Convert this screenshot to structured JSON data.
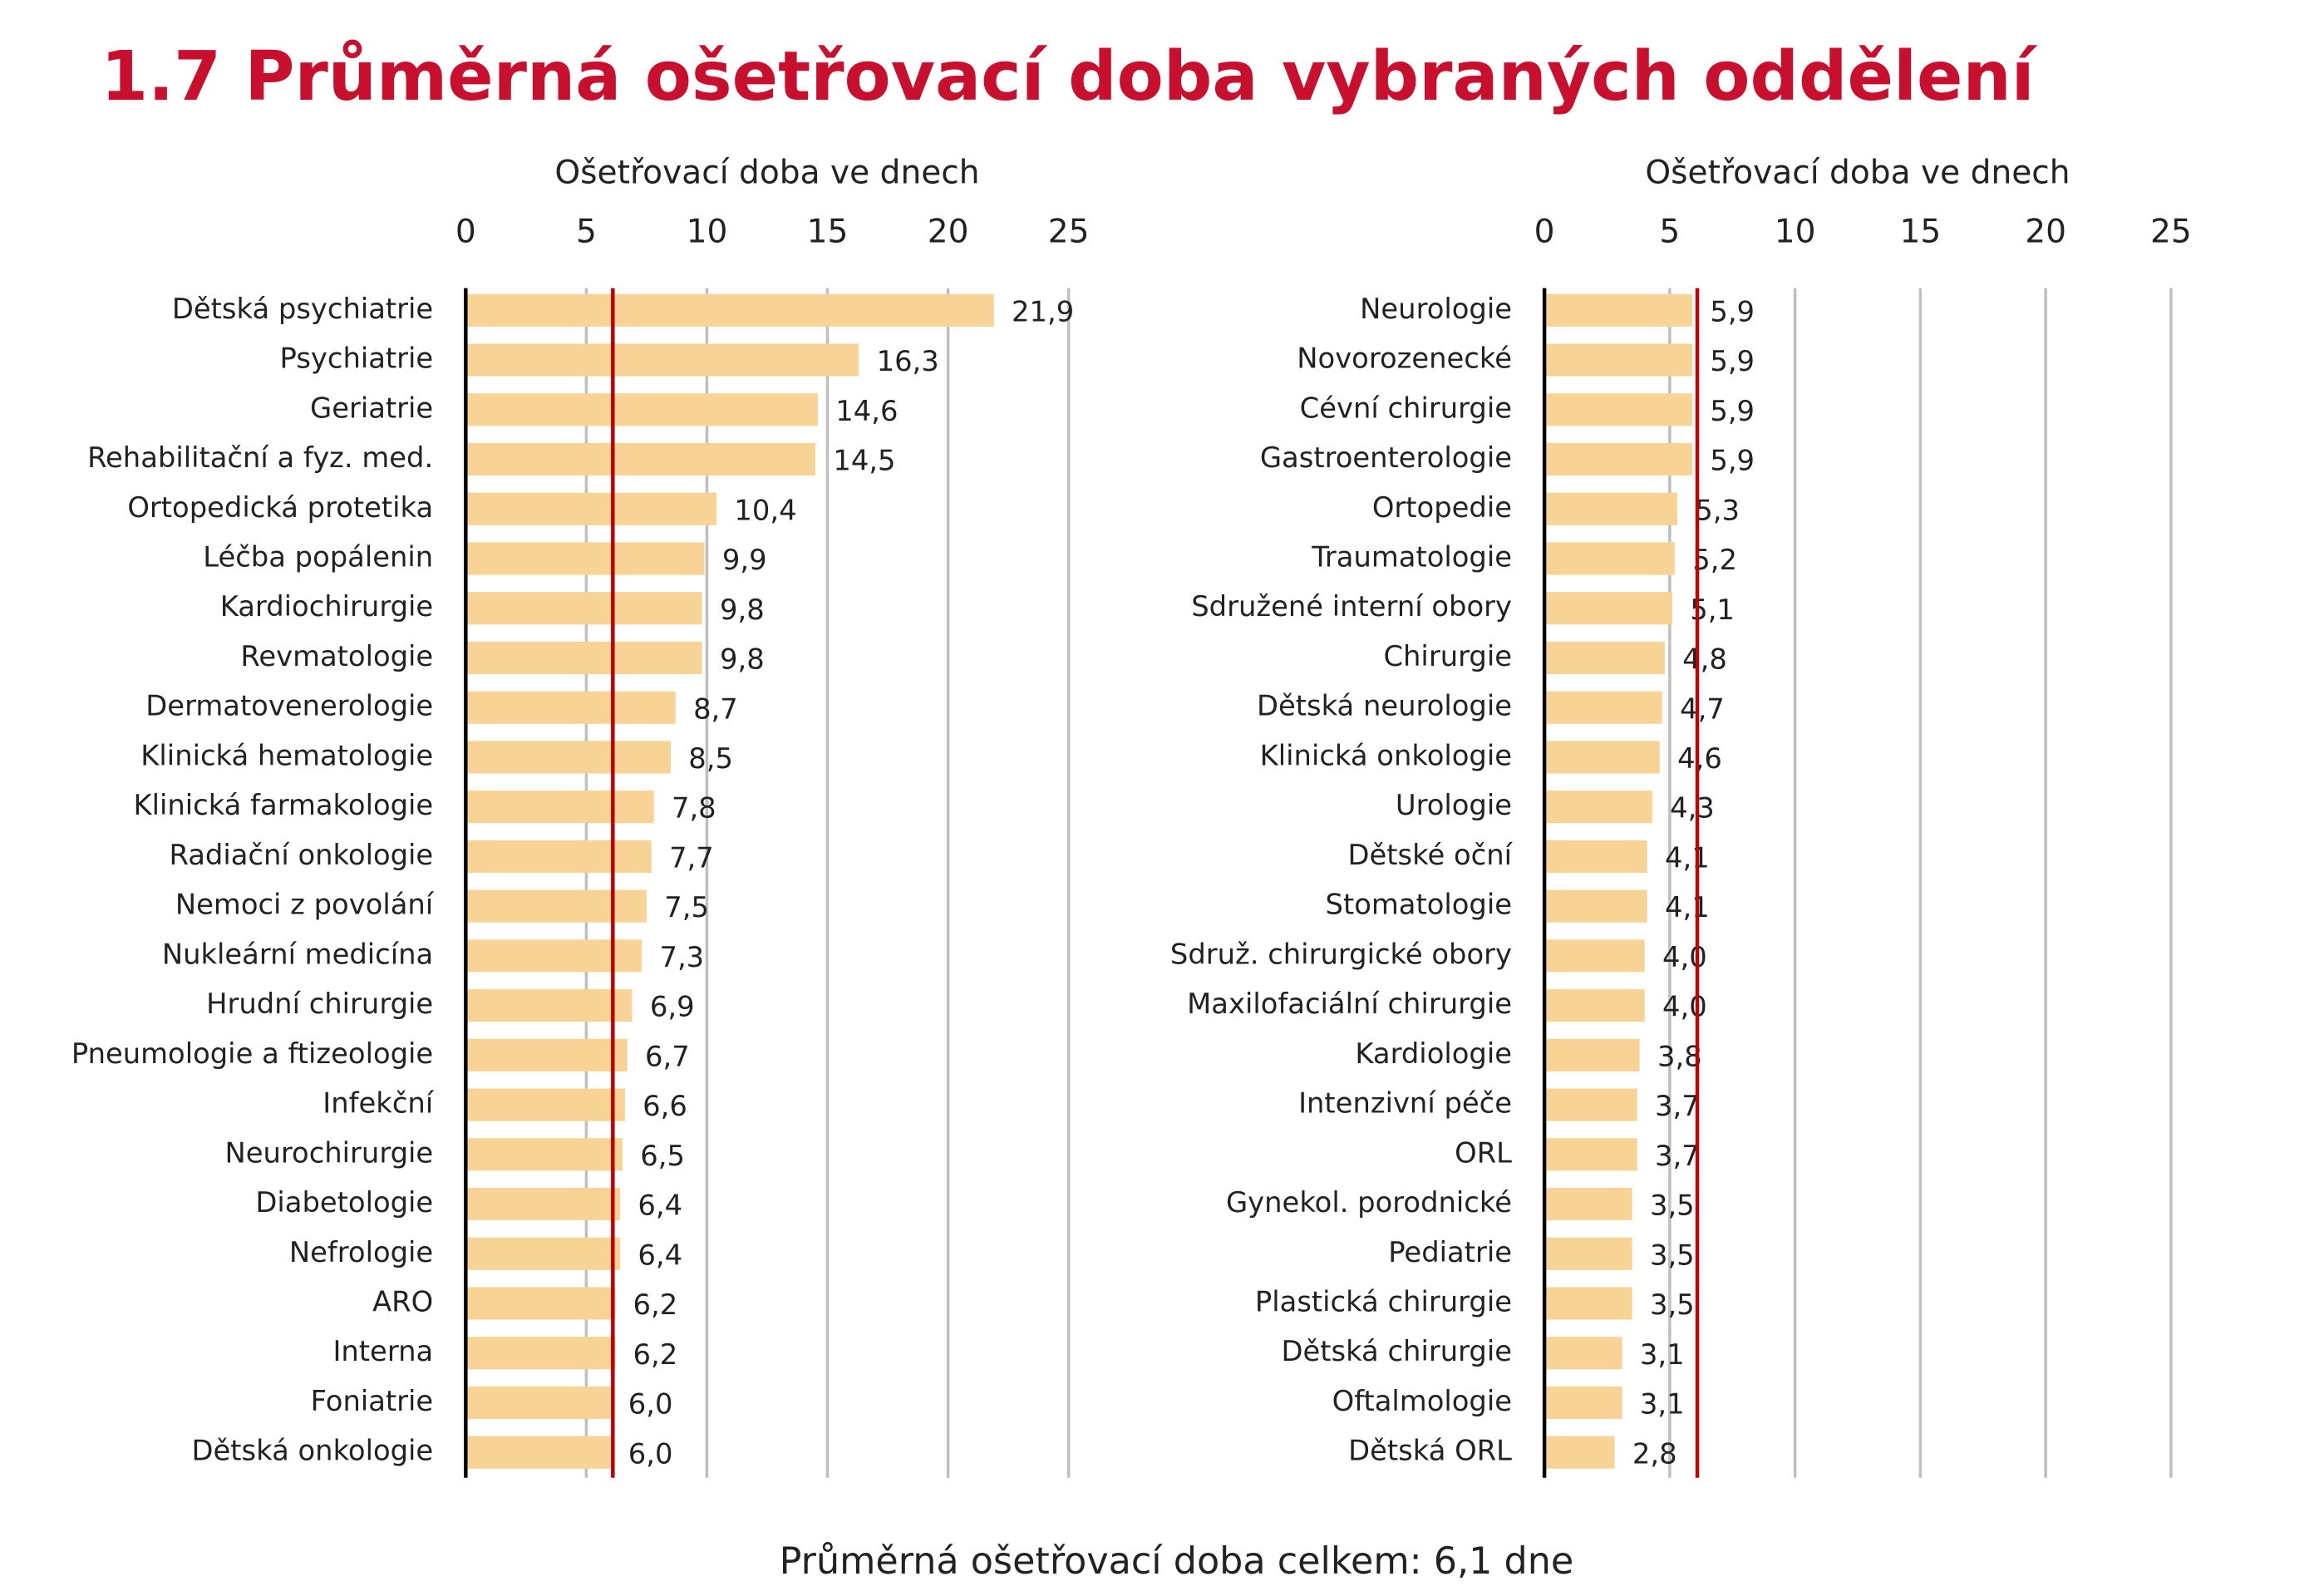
{
  "title": "1.7 Průměrná ošetřovací doba vybraných oddělení",
  "footer": "Průměrná ošetřovací doba celkem: 6,1 dne",
  "chart_data": [
    {
      "type": "bar",
      "orientation": "horizontal",
      "x_label": "Ošetřovací doba ve dnech",
      "categories": [
        "Dětská psychiatrie",
        "Psychiatrie",
        "Geriatrie",
        "Rehabilitační a fyz. med.",
        "Ortopedická protetika",
        "Léčba popálenin",
        "Kardiochirurgie",
        "Revmatologie",
        "Dermatovenerologie",
        "Klinická hematologie",
        "Klinická farmakologie",
        "Radiační onkologie",
        "Nemoci z povolání",
        "Nukleární medicína",
        "Hrudní chirurgie",
        "Pneumologie a ftizeologie",
        "Infekční",
        "Neurochirurgie",
        "Diabetologie",
        "Nefrologie",
        "ARO",
        "Interna",
        "Foniatrie",
        "Dětská onkologie"
      ],
      "values": [
        21.9,
        16.3,
        14.6,
        14.5,
        10.4,
        9.9,
        9.8,
        9.8,
        8.7,
        8.5,
        7.8,
        7.7,
        7.5,
        7.3,
        6.9,
        6.7,
        6.6,
        6.5,
        6.4,
        6.4,
        6.2,
        6.2,
        6.0,
        6.0
      ],
      "value_labels": [
        "21,9",
        "16,3",
        "14,6",
        "14,5",
        "10,4",
        "9,9",
        "9,8",
        "9,8",
        "8,7",
        "8,5",
        "7,8",
        "7,7",
        "7,5",
        "7,3",
        "6,9",
        "6,7",
        "6,6",
        "6,5",
        "6,4",
        "6,4",
        "6,2",
        "6,2",
        "6,0",
        "6,0"
      ],
      "color": "#f7d495",
      "xlim": [
        0,
        25
      ],
      "xticks": [
        0,
        5,
        10,
        15,
        20,
        25
      ],
      "grid": true,
      "reference_line": 6.1,
      "reference_color": "#c00000"
    },
    {
      "type": "bar",
      "orientation": "horizontal",
      "x_label": "Ošetřovací doba ve dnech",
      "categories": [
        "Neurologie",
        "Novorozenecké",
        "Cévní chirurgie",
        "Gastroenterologie",
        "Ortopedie",
        "Traumatologie",
        "Sdružené interní obory",
        "Chirurgie",
        "Dětská neurologie",
        "Klinická onkologie",
        "Urologie",
        "Dětské oční",
        "Stomatologie",
        "Sdruž. chirurgické obory",
        "Maxilofaciální chirurgie",
        "Kardiologie",
        "Intenzivní péče",
        "ORL",
        "Gynekol. porodnické",
        "Pediatrie",
        "Plastická chirurgie",
        "Dětská chirurgie",
        "Oftalmologie",
        "Dětská ORL"
      ],
      "values": [
        5.9,
        5.9,
        5.9,
        5.9,
        5.3,
        5.2,
        5.1,
        4.8,
        4.7,
        4.6,
        4.3,
        4.1,
        4.1,
        4.0,
        4.0,
        3.8,
        3.7,
        3.7,
        3.5,
        3.5,
        3.5,
        3.1,
        3.1,
        2.8
      ],
      "value_labels": [
        "5,9",
        "5,9",
        "5,9",
        "5,9",
        "5,3",
        "5,2",
        "5,1",
        "4,8",
        "4,7",
        "4,6",
        "4,3",
        "4,1",
        "4,1",
        "4,0",
        "4,0",
        "3,8",
        "3,7",
        "3,7",
        "3,5",
        "3,5",
        "3,5",
        "3,1",
        "3,1",
        "2,8"
      ],
      "color": "#f7d495",
      "xlim": [
        0,
        25
      ],
      "xticks": [
        0,
        5,
        10,
        15,
        20,
        25
      ],
      "grid": true,
      "reference_line": 6.1,
      "reference_color": "#c00000"
    }
  ]
}
